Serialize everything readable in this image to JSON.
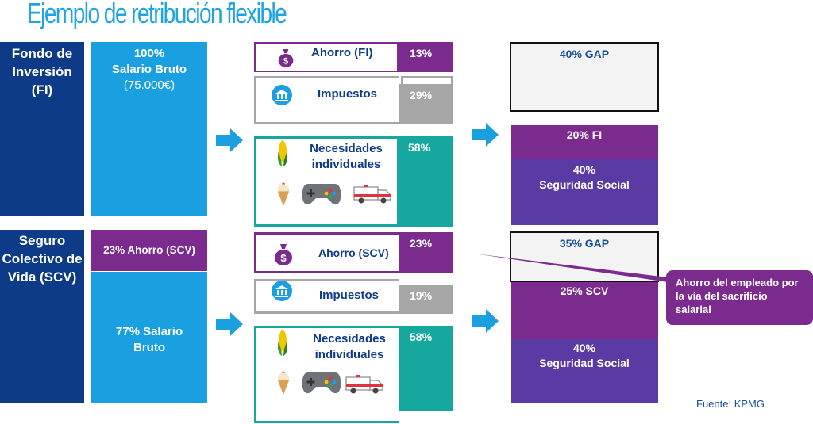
{
  "title": "Ejemplo de retribución flexible",
  "source": "Fuente: KPMG",
  "colors": {
    "navy": "#0e3b87",
    "blue": "#1aa0e0",
    "purple": "#7b2a8e",
    "gray": "#a6a6a6",
    "teal": "#16a89f",
    "violet": "#5a3aa3"
  },
  "fi": {
    "label": "Fondo de Inversión (FI)",
    "salary_pct": "100%",
    "salary_label": "Salario Bruto",
    "salary_amount": "(75.000€)",
    "bars": [
      {
        "label": "Ahorro (FI)",
        "pct": "13%",
        "icon": "money-bag-icon"
      },
      {
        "label": "Impuestos",
        "pct": "29%",
        "icon": "government-building-icon"
      },
      {
        "label": "Necesidades individuales",
        "pct": "58%",
        "icons": [
          "corn-icon",
          "ice-cream-icon",
          "gamepad-icon",
          "ambulance-icon"
        ]
      }
    ],
    "result": {
      "gap": "40% GAP",
      "fund": "20% FI",
      "ss_pct": "40%",
      "ss_label": "Seguridad Social"
    }
  },
  "scv": {
    "label": "Seguro Colectivo de Vida (SCV)",
    "savings": "23% Ahorro (SCV)",
    "salary": "77% Salario Bruto",
    "bars": [
      {
        "label": "Ahorro (SCV)",
        "pct": "23%",
        "icon": "money-bag-icon"
      },
      {
        "label": "Impuestos",
        "pct": "19%",
        "icon": "government-building-icon"
      },
      {
        "label": "Necesidades individuales",
        "pct": "58%",
        "icons": [
          "corn-icon",
          "ice-cream-icon",
          "gamepad-icon",
          "ambulance-icon"
        ]
      }
    ],
    "result": {
      "gap": "35% GAP",
      "fund": "25% SCV",
      "ss_pct": "40%",
      "ss_label": "Seguridad Social"
    },
    "callout": "Ahorro del empleado por la vía del sacrificio salarial"
  }
}
